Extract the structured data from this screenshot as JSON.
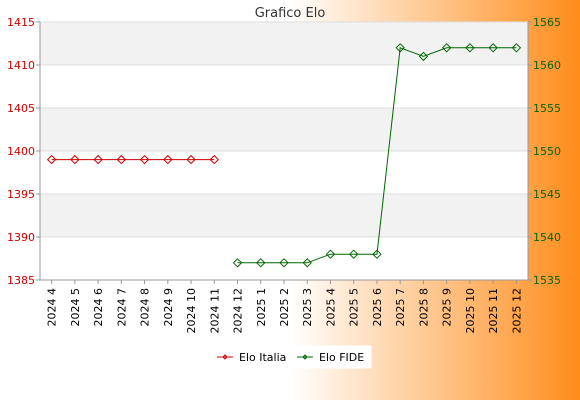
{
  "chart_data": {
    "type": "line",
    "title": "Grafico Elo",
    "categories": [
      "2024 4",
      "2024 5",
      "2024 6",
      "2024 7",
      "2024 8",
      "2024 9",
      "2024 10",
      "2024 11",
      "2024 12",
      "2025 1",
      "2025 2",
      "2025 3",
      "2025 4",
      "2025 5",
      "2025 6",
      "2025 7",
      "2025 8",
      "2025 9",
      "2025 10",
      "2025 11",
      "2025 12"
    ],
    "y_left": {
      "min": 1385,
      "max": 1415,
      "ticks": [
        1385,
        1390,
        1395,
        1400,
        1405,
        1410,
        1415
      ],
      "color": "#cc0000"
    },
    "y_right": {
      "min": 1535,
      "max": 1565,
      "ticks": [
        1535,
        1540,
        1545,
        1550,
        1555,
        1560,
        1565
      ],
      "color": "#006600"
    },
    "series": [
      {
        "name": "Elo Italia",
        "axis": "left",
        "color": "#cc0000",
        "values": [
          1399,
          1399,
          1399,
          1399,
          1399,
          1399,
          1399,
          1399,
          null,
          null,
          null,
          null,
          null,
          null,
          null,
          null,
          null,
          null,
          null,
          null,
          null
        ]
      },
      {
        "name": "Elo FIDE",
        "axis": "right",
        "color": "#006600",
        "values": [
          null,
          null,
          null,
          null,
          null,
          null,
          null,
          null,
          1537,
          1537,
          1537,
          1537,
          1538,
          1538,
          1538,
          1562,
          1561,
          1562,
          1562,
          1562,
          1562
        ]
      }
    ],
    "grid": true,
    "legend_position": "bottom-center"
  },
  "colors": {
    "background_left": "#ffffff",
    "background_right": "#ff8c1a",
    "band": "#f2f2f2",
    "axis": "#999999"
  }
}
